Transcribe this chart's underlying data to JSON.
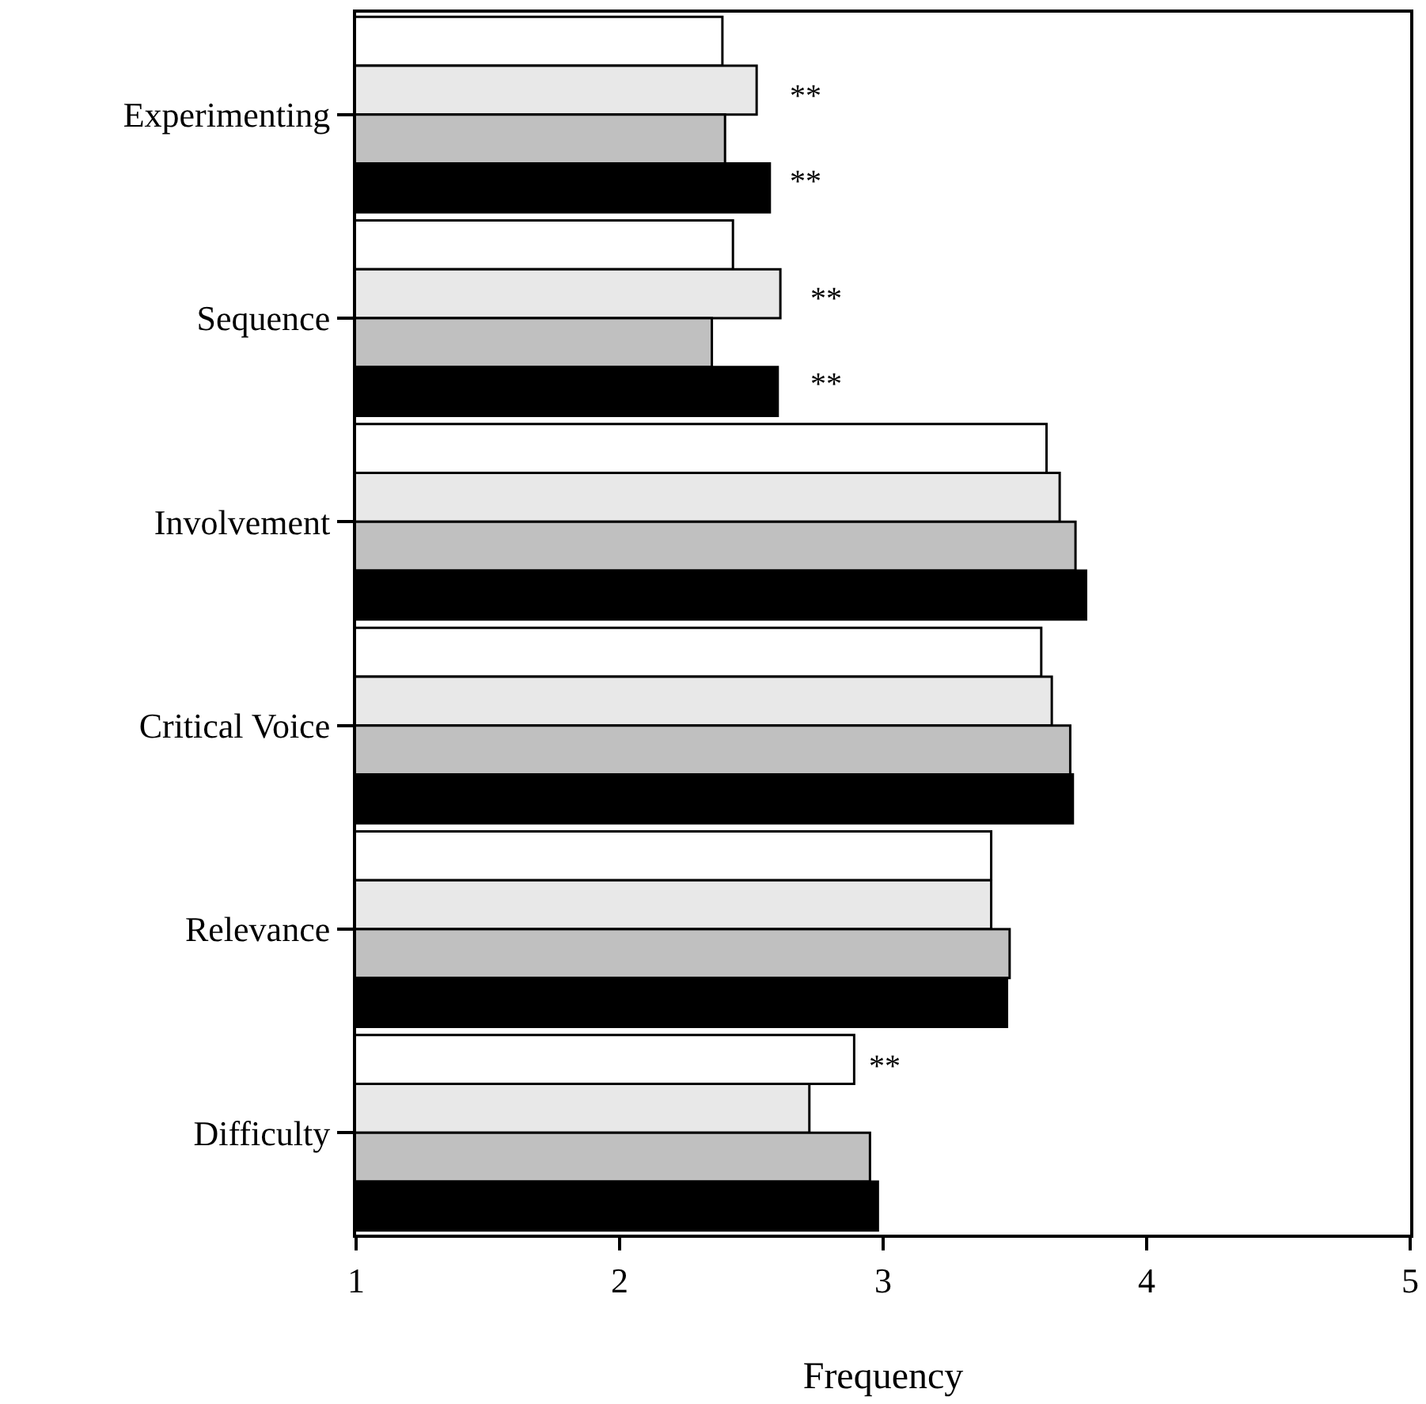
{
  "chart_data": {
    "type": "bar",
    "orientation": "horizontal",
    "xlabel": "Frequency",
    "categories": [
      "Experimenting",
      "Sequence",
      "Involvement",
      "Critical Voice",
      "Relevance",
      "Difficulty"
    ],
    "series": [
      {
        "color": "#ffffff",
        "values": [
          2.39,
          2.43,
          3.62,
          3.6,
          3.41,
          2.89
        ]
      },
      {
        "color": "#e8e8e8",
        "values": [
          2.52,
          2.61,
          3.67,
          3.64,
          3.41,
          2.72
        ]
      },
      {
        "color": "#c0c0c0",
        "values": [
          2.4,
          2.35,
          3.73,
          3.71,
          3.48,
          2.95
        ]
      },
      {
        "color": "#000000",
        "values": [
          2.57,
          2.6,
          3.77,
          3.72,
          3.47,
          2.98
        ]
      }
    ],
    "xlim": [
      1,
      5
    ],
    "xticks": [
      1,
      2,
      3,
      4,
      5
    ],
    "annotations": [
      "**",
      "**",
      "**",
      "**",
      "**"
    ]
  }
}
